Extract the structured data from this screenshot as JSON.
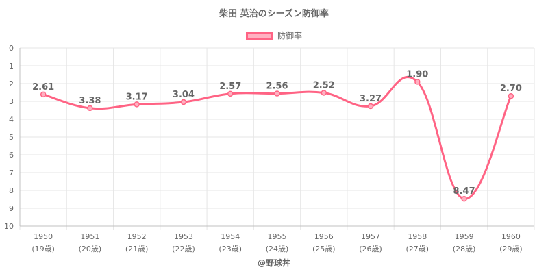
{
  "chart_data": {
    "type": "line",
    "title": "柴田 英治のシーズン防御率",
    "categories": [
      "1950",
      "1951",
      "1952",
      "1953",
      "1954",
      "1955",
      "1956",
      "1957",
      "1958",
      "1959",
      "1960"
    ],
    "category_sublabels": [
      "(19歳)",
      "(20歳)",
      "(21歳)",
      "(22歳)",
      "(23歳)",
      "(24歳)",
      "(25歳)",
      "(26歳)",
      "(27歳)",
      "(28歳)",
      "(29歳)"
    ],
    "series": [
      {
        "name": "防御率",
        "values": [
          2.61,
          3.38,
          3.17,
          3.04,
          2.57,
          2.56,
          2.52,
          3.27,
          1.9,
          8.47,
          2.7
        ],
        "labels": [
          "2.61",
          "3.38",
          "3.17",
          "3.04",
          "2.57",
          "2.56",
          "2.52",
          "3.27",
          "1.90",
          "8.47",
          "2.70"
        ]
      }
    ],
    "ylim": [
      0,
      10
    ],
    "y_reversed": true,
    "yticks": [
      "0",
      "1",
      "2",
      "3",
      "4",
      "5",
      "6",
      "7",
      "8",
      "9",
      "10"
    ],
    "grid": true,
    "legend_position": "top",
    "colors": {
      "line": "#ff6384",
      "fill": "#ffb1c1",
      "grid": "#e6e6e6",
      "axis": "#c0c0c0",
      "text": "#666666"
    }
  },
  "footer": {
    "credit": "@野球丼"
  }
}
